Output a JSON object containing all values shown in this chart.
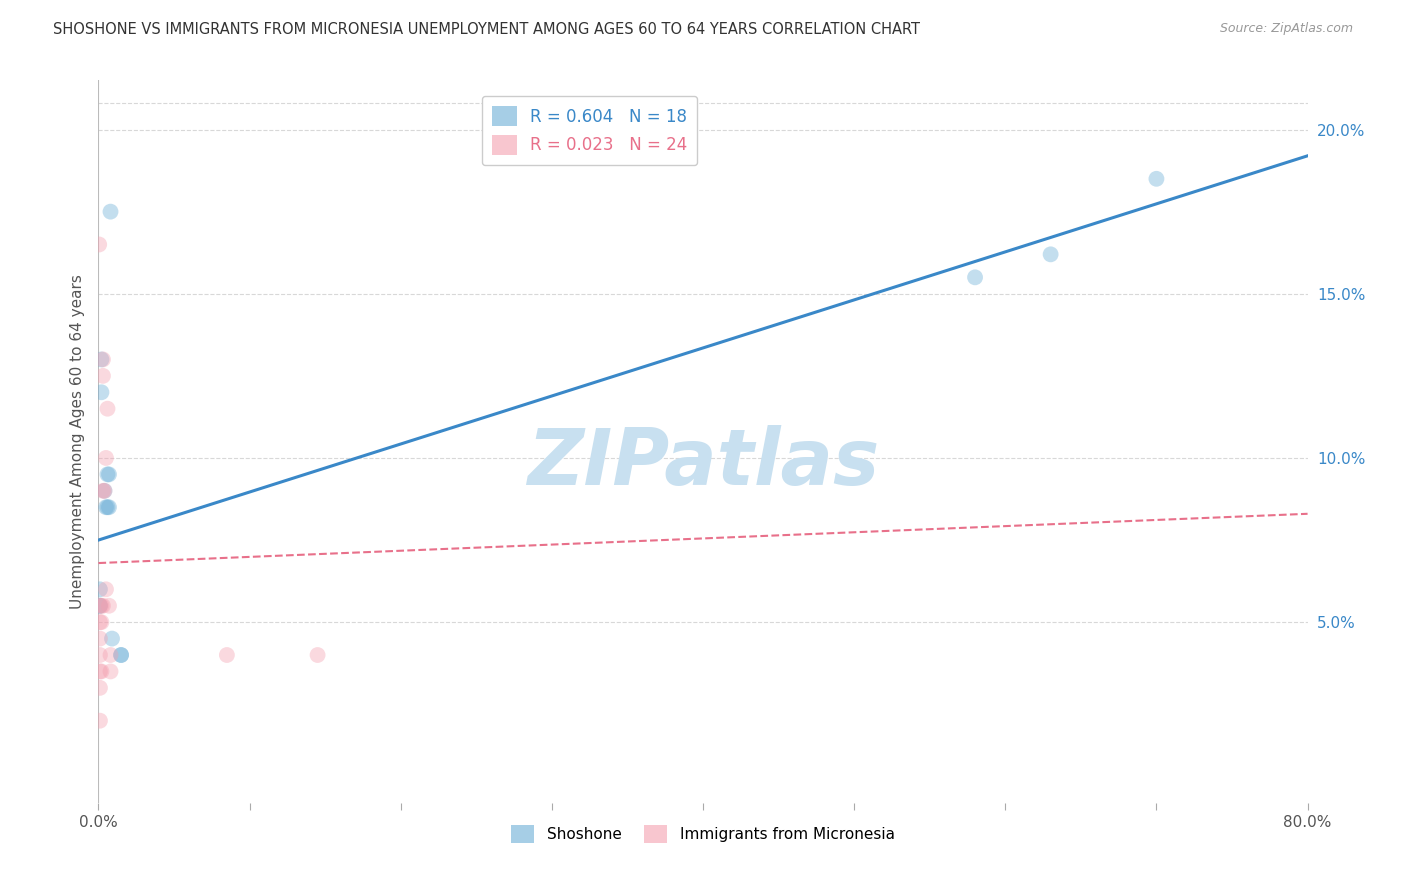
{
  "title": "SHOSHONE VS IMMIGRANTS FROM MICRONESIA UNEMPLOYMENT AMONG AGES 60 TO 64 YEARS CORRELATION CHART",
  "source": "Source: ZipAtlas.com",
  "ylabel": "Unemployment Among Ages 60 to 64 years",
  "right_yticks": [
    "20.0%",
    "15.0%",
    "10.0%",
    "5.0%"
  ],
  "right_ytick_vals": [
    0.2,
    0.15,
    0.1,
    0.05
  ],
  "xlim": [
    0.0,
    0.8
  ],
  "ylim": [
    -0.005,
    0.215
  ],
  "shoshone_color": "#6baed6",
  "micronesia_color": "#f4a0b0",
  "shoshone_line_color": "#3a88c8",
  "micronesia_line_color": "#e8708a",
  "legend_R_shoshone": "R = 0.604",
  "legend_N_shoshone": "N = 18",
  "legend_R_micronesia": "R = 0.023",
  "legend_N_micronesia": "N = 24",
  "shoshone_x": [
    0.001,
    0.001,
    0.001,
    0.002,
    0.002,
    0.004,
    0.005,
    0.006,
    0.006,
    0.007,
    0.007,
    0.008,
    0.009,
    0.015,
    0.015,
    0.58,
    0.63,
    0.7
  ],
  "shoshone_y": [
    0.055,
    0.06,
    0.055,
    0.13,
    0.12,
    0.09,
    0.085,
    0.095,
    0.085,
    0.095,
    0.085,
    0.175,
    0.045,
    0.04,
    0.04,
    0.155,
    0.162,
    0.185
  ],
  "micronesia_x": [
    0.0005,
    0.001,
    0.001,
    0.001,
    0.001,
    0.001,
    0.001,
    0.001,
    0.002,
    0.002,
    0.002,
    0.003,
    0.003,
    0.003,
    0.003,
    0.004,
    0.005,
    0.005,
    0.006,
    0.007,
    0.008,
    0.008,
    0.085,
    0.145
  ],
  "micronesia_y": [
    0.165,
    0.055,
    0.05,
    0.045,
    0.04,
    0.035,
    0.03,
    0.02,
    0.055,
    0.05,
    0.035,
    0.13,
    0.125,
    0.09,
    0.055,
    0.09,
    0.1,
    0.06,
    0.115,
    0.055,
    0.04,
    0.035,
    0.04,
    0.04
  ],
  "shoshone_line_x": [
    0.0,
    0.8
  ],
  "shoshone_line_y": [
    0.075,
    0.192
  ],
  "micronesia_line_x": [
    0.0,
    0.8
  ],
  "micronesia_line_y": [
    0.068,
    0.083
  ],
  "bg_color": "#ffffff",
  "grid_color": "#d8d8d8",
  "marker_size": 130,
  "marker_alpha": 0.4,
  "watermark": "ZIPatlas",
  "watermark_color": "#c8e0f0"
}
